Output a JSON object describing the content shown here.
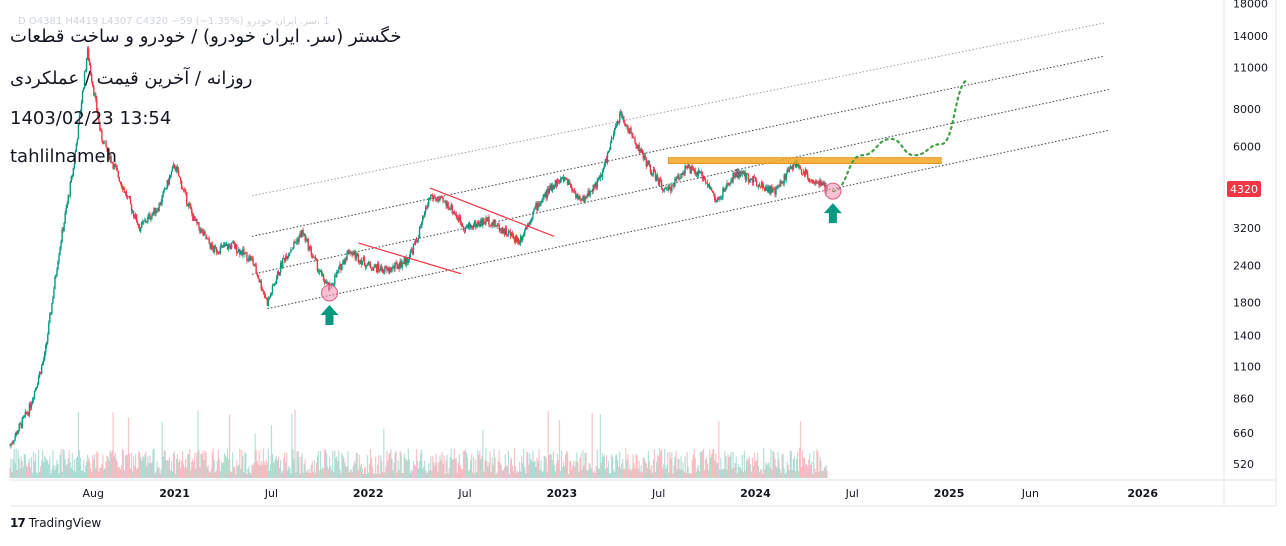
{
  "header": {
    "symbol_line": "خگستر (سر. ایران خودرو) / خودرو و ساخت قطعات",
    "sub_line": "روزانه / آخرین قیمت / عملکردی",
    "datetime": "1403/02/23 13:54",
    "author": "tahlilnameh",
    "ohlc_line": "1 ،سر. ایران خودرو D  O4381  H4419  L4307  C4320  −59 (−1.35%)"
  },
  "branding": {
    "logo_mark": "17",
    "logo_text": "TradingView"
  },
  "price_label": {
    "value": "4320",
    "color": "#f23645"
  },
  "chart_data": {
    "type": "candlestick",
    "title": "خگستر (سر. ایران خودرو) / خودرو و ساخت قطعات",
    "y_scale": "log",
    "ylim": [
      460,
      18500
    ],
    "y_ticks": [
      {
        "label": "18000",
        "v": 18000
      },
      {
        "label": "14000",
        "v": 14000
      },
      {
        "label": "11000",
        "v": 11000
      },
      {
        "label": "8000",
        "v": 8000
      },
      {
        "label": "6000",
        "v": 6000
      },
      {
        "label": "4320",
        "v": 4320
      },
      {
        "label": "3200",
        "v": 3200
      },
      {
        "label": "2400",
        "v": 2400
      },
      {
        "label": "1800",
        "v": 1800
      },
      {
        "label": "1400",
        "v": 1400
      },
      {
        "label": "1100",
        "v": 1100
      },
      {
        "label": "860",
        "v": 860
      },
      {
        "label": "660",
        "v": 660
      },
      {
        "label": "520",
        "v": 520
      }
    ],
    "x_ticks": [
      {
        "label": "Aug",
        "t": 2020.58
      },
      {
        "label": "2021",
        "t": 2021.0
      },
      {
        "label": "Jul",
        "t": 2021.5
      },
      {
        "label": "2022",
        "t": 2022.0
      },
      {
        "label": "Jul",
        "t": 2022.5
      },
      {
        "label": "2023",
        "t": 2023.0
      },
      {
        "label": "Jul",
        "t": 2023.5
      },
      {
        "label": "2024",
        "t": 2024.0
      },
      {
        "label": "Jul",
        "t": 2024.5
      },
      {
        "label": "2025",
        "t": 2025.0
      },
      {
        "label": "Jun",
        "t": 2025.42
      },
      {
        "label": "2026",
        "t": 2026.0
      }
    ],
    "xlim": [
      2020.15,
      2026.42
    ],
    "price_anchors": [
      {
        "t": 2020.15,
        "p": 600
      },
      {
        "t": 2020.25,
        "p": 800
      },
      {
        "t": 2020.33,
        "p": 1200
      },
      {
        "t": 2020.4,
        "p": 2600
      },
      {
        "t": 2020.48,
        "p": 5200
      },
      {
        "t": 2020.55,
        "p": 12500
      },
      {
        "t": 2020.62,
        "p": 6500
      },
      {
        "t": 2020.72,
        "p": 4600
      },
      {
        "t": 2020.82,
        "p": 3200
      },
      {
        "t": 2020.92,
        "p": 3800
      },
      {
        "t": 2021.0,
        "p": 5200
      },
      {
        "t": 2021.1,
        "p": 3400
      },
      {
        "t": 2021.2,
        "p": 2700
      },
      {
        "t": 2021.3,
        "p": 2800
      },
      {
        "t": 2021.4,
        "p": 2500
      },
      {
        "t": 2021.48,
        "p": 1800
      },
      {
        "t": 2021.56,
        "p": 2500
      },
      {
        "t": 2021.66,
        "p": 3100
      },
      {
        "t": 2021.76,
        "p": 2200
      },
      {
        "t": 2021.8,
        "p": 2000
      },
      {
        "t": 2021.9,
        "p": 2700
      },
      {
        "t": 2022.0,
        "p": 2400
      },
      {
        "t": 2022.1,
        "p": 2300
      },
      {
        "t": 2022.2,
        "p": 2500
      },
      {
        "t": 2022.25,
        "p": 2900
      },
      {
        "t": 2022.32,
        "p": 4100
      },
      {
        "t": 2022.42,
        "p": 3800
      },
      {
        "t": 2022.5,
        "p": 3200
      },
      {
        "t": 2022.62,
        "p": 3400
      },
      {
        "t": 2022.78,
        "p": 2900
      },
      {
        "t": 2022.86,
        "p": 3700
      },
      {
        "t": 2022.96,
        "p": 4500
      },
      {
        "t": 2023.02,
        "p": 4700
      },
      {
        "t": 2023.1,
        "p": 3900
      },
      {
        "t": 2023.2,
        "p": 4700
      },
      {
        "t": 2023.3,
        "p": 7700
      },
      {
        "t": 2023.38,
        "p": 6200
      },
      {
        "t": 2023.46,
        "p": 5000
      },
      {
        "t": 2023.54,
        "p": 4200
      },
      {
        "t": 2023.64,
        "p": 5100
      },
      {
        "t": 2023.74,
        "p": 4700
      },
      {
        "t": 2023.8,
        "p": 3900
      },
      {
        "t": 2023.9,
        "p": 4900
      },
      {
        "t": 2024.0,
        "p": 4600
      },
      {
        "t": 2024.1,
        "p": 4200
      },
      {
        "t": 2024.2,
        "p": 5300
      },
      {
        "t": 2024.28,
        "p": 4700
      },
      {
        "t": 2024.37,
        "p": 4320
      }
    ],
    "channel_lines": [
      {
        "t1": 2021.48,
        "p1": 1720,
        "t2": 2025.83,
        "p2": 6800,
        "style": "dotted"
      },
      {
        "t1": 2021.4,
        "p1": 2240,
        "t2": 2025.83,
        "p2": 9300,
        "style": "dotted"
      },
      {
        "t1": 2021.4,
        "p1": 3000,
        "t2": 2025.8,
        "p2": 12000,
        "style": "dotted"
      },
      {
        "t1": 2021.4,
        "p1": 4100,
        "t2": 2025.8,
        "p2": 15500,
        "style": "dotted_light"
      }
    ],
    "trend_lines": [
      {
        "t1": 2021.95,
        "p1": 2850,
        "t2": 2022.48,
        "p2": 2250,
        "color": "#f23645"
      },
      {
        "t1": 2022.32,
        "p1": 4350,
        "t2": 2022.96,
        "p2": 3000,
        "color": "#f23645"
      }
    ],
    "resistance_zone": {
      "t1": 2023.55,
      "t2": 2024.96,
      "p_low": 5250,
      "p_high": 5500,
      "color": "#f5a623"
    },
    "support_points": [
      {
        "t": 2021.8,
        "p": 1940
      },
      {
        "t": 2024.4,
        "p": 4250
      }
    ],
    "forecast_path": [
      {
        "t": 2024.4,
        "p": 4250
      },
      {
        "t": 2024.55,
        "p": 5600
      },
      {
        "t": 2024.7,
        "p": 6350
      },
      {
        "t": 2024.82,
        "p": 5600
      },
      {
        "t": 2024.96,
        "p": 6100
      },
      {
        "t": 2025.1,
        "p": 10000
      }
    ],
    "last_price": 4320
  }
}
